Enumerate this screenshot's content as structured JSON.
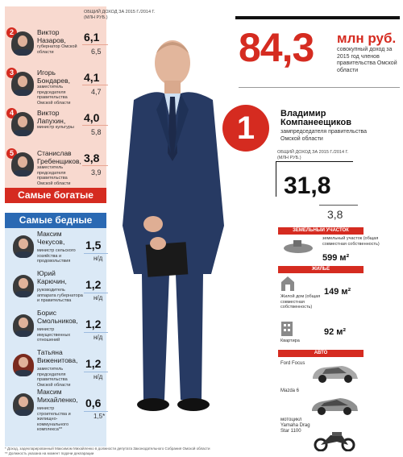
{
  "richest": {
    "caption": "ОБЩИЙ ДОХОД ЗА 2015 Г./2014 Г. (МЛН РУБ.)",
    "banner": "Самые богатые",
    "people": [
      {
        "rank": "2",
        "name": "Виктор Назаров,",
        "role": "губернатор Омской области",
        "income_2015": "6,1",
        "income_2014": "6,5"
      },
      {
        "rank": "3",
        "name": "Игорь Бондарев,",
        "role": "заместитель председателя правительства Омской области",
        "income_2015": "4,1",
        "income_2014": "4,7"
      },
      {
        "rank": "4",
        "name": "Виктор Лапухин,",
        "role": "министр культуры",
        "income_2015": "4,0",
        "income_2014": "5,8"
      },
      {
        "rank": "5",
        "name": "Станислав Гребенщиков,",
        "role": "заместитель председателя правительства Омской области",
        "income_2015": "3,8",
        "income_2014": "3,9"
      }
    ]
  },
  "poorest": {
    "banner": "Самые бедные",
    "people": [
      {
        "name": "Максим Чекусов,",
        "role": "министр сельского хозяйства и продовольствия",
        "income_2015": "1,5",
        "income_2014": "н/д"
      },
      {
        "name": "Юрий Карючин,",
        "role": "руководитель аппарата губернатора и правительства",
        "income_2015": "1,2",
        "income_2014": "н/д"
      },
      {
        "name": "Борис Смольников,",
        "role": "министр имущественных отношений",
        "income_2015": "1,2",
        "income_2014": "н/д"
      },
      {
        "name": "Татьяна Виженитова,",
        "role": "заместитель председателя правительства Омской области",
        "income_2015": "1,2",
        "income_2014": "н/д"
      },
      {
        "name": "Максим Михайленко,",
        "role": "министр строительства и жилищно-коммунального комплекса**",
        "income_2015": "0,6",
        "income_2014": "1,5*"
      }
    ]
  },
  "total": {
    "value": "84,3",
    "unit": "млн руб.",
    "description": "совокупный доход за 2015 год членов правительства Омской области"
  },
  "winner": {
    "rank": "1",
    "name_first": "Владимир",
    "name_last": "Компанеещиков",
    "role": "зампредседателя правительства Омской области",
    "caption": "ОБЩИЙ ДОХОД ЗА 2015 Г./2014 Г. (МЛН РУБ.)",
    "income_2015": "31,8",
    "income_2014": "3,8"
  },
  "assets": {
    "land_header": "Земельный участок",
    "land_label": "земельный участок (общая совместная собственность)",
    "land_value": "599 м²",
    "housing_header": "Жилье",
    "house_label": "Жилой дом (общая совместная собственность)",
    "house_value": "149 м²",
    "flat_label": "Квартира",
    "flat_value": "92 м²",
    "auto_header": "Авто",
    "cars": [
      "Ford Focus",
      "Mazda 6",
      "мотоцикл Yamaha Drag Star 1100"
    ]
  },
  "footnotes": [
    "* Доход, задекларированный Максимом Михайленко в должности депутата Законодательного Собрания Омской области",
    "** Должность указана на момент подачи декларации"
  ],
  "colors": {
    "accent_red": "#d52b20",
    "accent_blue": "#2a69b3",
    "rich_bg": "#f8d9cf",
    "poor_bg": "#dbe9f6"
  }
}
